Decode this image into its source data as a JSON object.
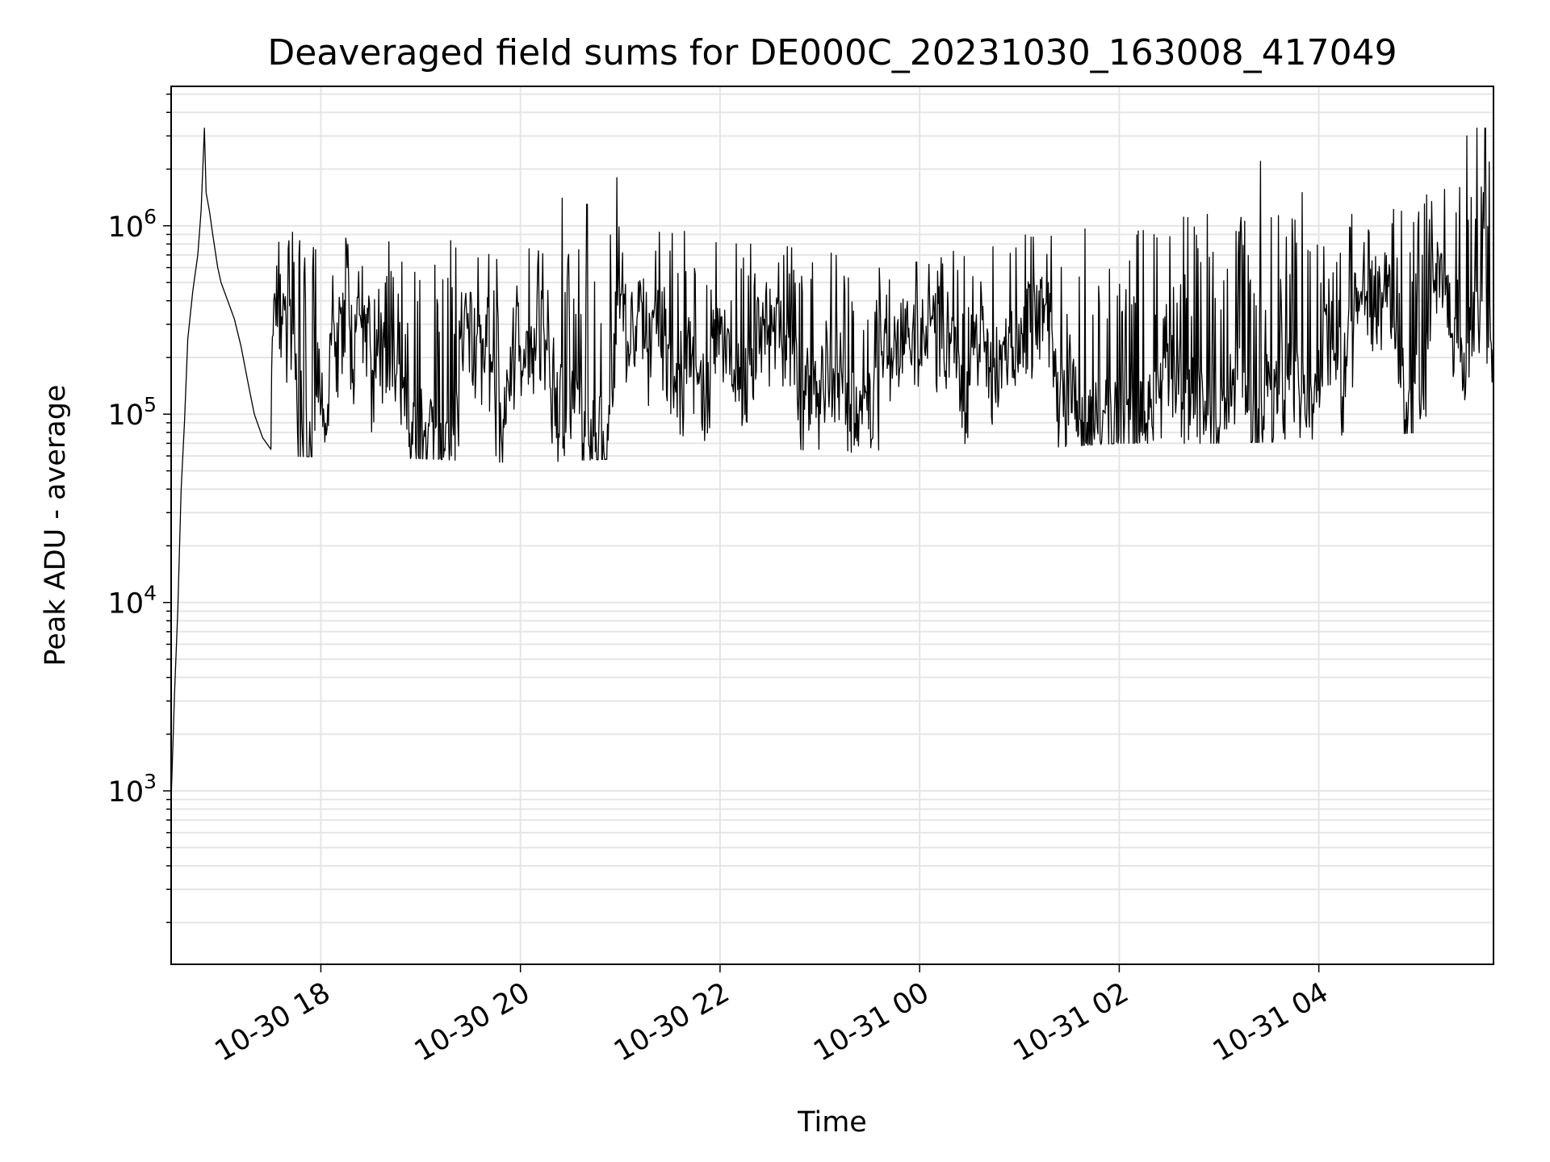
{
  "chart_data": {
    "type": "line",
    "title": "Deaveraged field sums for DE000C_20231030_163008_417049",
    "xlabel": "Time",
    "ylabel": "Peak ADU - average",
    "y_scale": "log",
    "ylim": [
      120,
      5500000
    ],
    "xlim": [
      "2023-10-30T16:30",
      "2023-10-31T05:45"
    ],
    "grid": true,
    "line_color": "#000000",
    "x_ticks": [
      {
        "t": "2023-10-30T18:00",
        "label": "10-30 18"
      },
      {
        "t": "2023-10-30T20:00",
        "label": "10-30 20"
      },
      {
        "t": "2023-10-30T22:00",
        "label": "10-30 22"
      },
      {
        "t": "2023-10-31T00:00",
        "label": "10-31 00"
      },
      {
        "t": "2023-10-31T02:00",
        "label": "10-31 02"
      },
      {
        "t": "2023-10-31T04:00",
        "label": "10-31 04"
      }
    ],
    "y_ticks": [
      {
        "value": 1000,
        "base": "10",
        "exp": "3"
      },
      {
        "value": 10000,
        "base": "10",
        "exp": "4"
      },
      {
        "value": 100000,
        "base": "10",
        "exp": "5"
      },
      {
        "value": 1000000,
        "base": "10",
        "exp": "6"
      }
    ],
    "series": [
      {
        "points": [
          [
            "2023-10-30T16:30",
            900
          ],
          [
            "2023-10-30T16:31",
            1700
          ],
          [
            "2023-10-30T16:32",
            3200
          ],
          [
            "2023-10-30T16:34",
            9000
          ],
          [
            "2023-10-30T16:36",
            40000
          ],
          [
            "2023-10-30T16:38",
            90000
          ],
          [
            "2023-10-30T16:40",
            250000
          ],
          [
            "2023-10-30T16:43",
            450000
          ],
          [
            "2023-10-30T16:46",
            700000
          ],
          [
            "2023-10-30T16:48",
            1200000
          ],
          [
            "2023-10-30T16:50",
            3300000
          ],
          [
            "2023-10-30T16:51",
            1500000
          ],
          [
            "2023-10-30T16:53",
            1200000
          ],
          [
            "2023-10-30T16:55",
            900000
          ],
          [
            "2023-10-30T16:58",
            600000
          ],
          [
            "2023-10-30T17:00",
            500000
          ],
          [
            "2023-10-30T17:04",
            400000
          ],
          [
            "2023-10-30T17:08",
            320000
          ],
          [
            "2023-10-30T17:12",
            230000
          ],
          [
            "2023-10-30T17:16",
            150000
          ],
          [
            "2023-10-30T17:20",
            100000
          ],
          [
            "2023-10-30T17:25",
            75000
          ],
          [
            "2023-10-30T17:30",
            65000
          ]
        ]
      }
    ],
    "noise_band": {
      "from": "2023-10-30T17:30",
      "to": "2023-10-31T05:45",
      "profile": [
        {
          "t": "2023-10-30T17:30",
          "low": 60000,
          "high": 1000000
        },
        {
          "t": "2023-10-30T19:00",
          "low": 58000,
          "high": 900000
        },
        {
          "t": "2023-10-30T20:00",
          "low": 55000,
          "high": 800000
        },
        {
          "t": "2023-10-30T21:00",
          "low": 58000,
          "high": 1000000
        },
        {
          "t": "2023-10-30T22:00",
          "low": 62000,
          "high": 900000
        },
        {
          "t": "2023-10-30T23:00",
          "low": 65000,
          "high": 800000
        },
        {
          "t": "2023-10-31T00:00",
          "low": 58000,
          "high": 700000
        },
        {
          "t": "2023-10-31T01:00",
          "low": 65000,
          "high": 900000
        },
        {
          "t": "2023-10-31T02:00",
          "low": 70000,
          "high": 1000000
        },
        {
          "t": "2023-10-31T03:00",
          "low": 70000,
          "high": 1200000
        },
        {
          "t": "2023-10-31T04:00",
          "low": 72000,
          "high": 1100000
        },
        {
          "t": "2023-10-31T05:00",
          "low": 80000,
          "high": 1400000
        },
        {
          "t": "2023-10-31T05:45",
          "low": 150000,
          "high": 2500000
        }
      ],
      "spikes": [
        {
          "t": "2023-10-30T20:25",
          "value": 1400000
        },
        {
          "t": "2023-10-30T20:58",
          "value": 1800000
        },
        {
          "t": "2023-10-30T20:40",
          "value": 1300000
        },
        {
          "t": "2023-10-31T03:25",
          "value": 2200000
        },
        {
          "t": "2023-10-31T03:50",
          "value": 1500000
        },
        {
          "t": "2023-10-31T05:35",
          "value": 3300000
        },
        {
          "t": "2023-10-31T05:40",
          "value": 3300000
        },
        {
          "t": "2023-10-31T05:29",
          "value": 3000000
        }
      ]
    }
  }
}
